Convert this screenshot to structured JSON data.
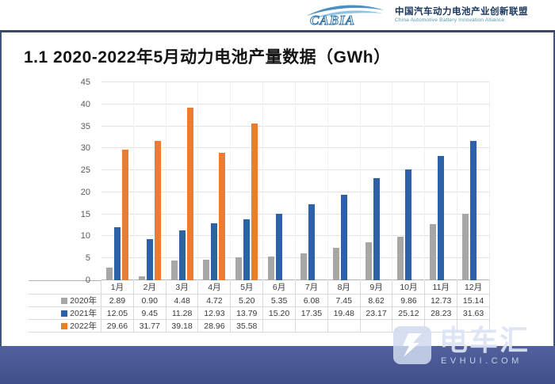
{
  "header": {
    "logo_text": "CABIA",
    "org_cn": "中国汽车动力电池产业创新联盟",
    "org_en": "China Automotive Battery Innovation Alliance"
  },
  "title": "1.1 2020-2022年5月动力电池产量数据（GWh）",
  "chart_data": {
    "type": "bar",
    "title": "1.1 2020-2022年5月动力电池产量数据（GWh）",
    "unit": "GWh",
    "categories": [
      "1月",
      "2月",
      "3月",
      "4月",
      "5月",
      "6月",
      "7月",
      "8月",
      "9月",
      "10月",
      "11月",
      "12月"
    ],
    "series": [
      {
        "name": "2020年",
        "color": "#a7a7a7",
        "values": [
          2.89,
          0.9,
          4.48,
          4.72,
          5.2,
          5.35,
          6.08,
          7.45,
          8.62,
          9.86,
          12.73,
          15.14
        ]
      },
      {
        "name": "2021年",
        "color": "#2e62a8",
        "values": [
          12.05,
          9.45,
          11.28,
          12.93,
          13.79,
          15.2,
          17.35,
          19.48,
          23.17,
          25.12,
          28.23,
          31.63
        ]
      },
      {
        "name": "2022年",
        "color": "#ec7c30",
        "values": [
          29.66,
          31.77,
          39.18,
          28.96,
          35.58,
          null,
          null,
          null,
          null,
          null,
          null,
          null
        ]
      }
    ],
    "ylim": [
      0,
      45
    ],
    "ytick": 5,
    "grid": true,
    "legend_position": "table-left",
    "data_table_shown": true
  },
  "watermark": {
    "brand": "电车汇",
    "domain": "EVHUI.COM"
  }
}
